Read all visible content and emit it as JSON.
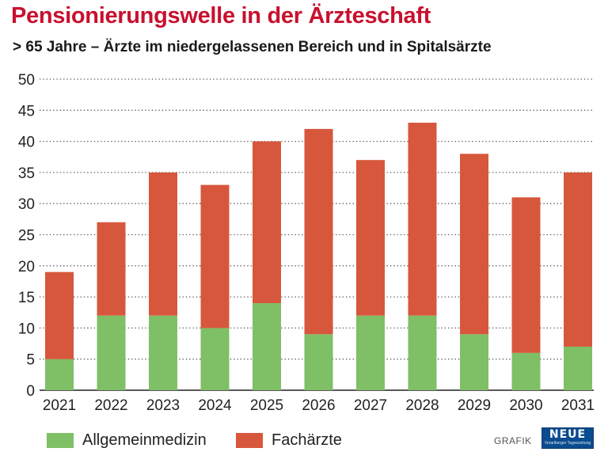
{
  "chart_data": {
    "type": "bar",
    "stacked": true,
    "title": "Pensionierungswelle in der Ärzteschaft",
    "subtitle": "> 65 Jahre – Ärzte im niedergelassenen Bereich und in Spitalsärzte",
    "categories": [
      "2021",
      "2022",
      "2023",
      "2024",
      "2025",
      "2026",
      "2027",
      "2028",
      "2029",
      "2030",
      "2031"
    ],
    "series": [
      {
        "name": "Allgemeinmedizin",
        "color": "#7fbf66",
        "values": [
          5,
          12,
          12,
          10,
          14,
          9,
          12,
          12,
          9,
          6,
          7
        ]
      },
      {
        "name": "Fachärzte",
        "color": "#d7573c",
        "values": [
          14,
          15,
          23,
          23,
          26,
          33,
          25,
          31,
          29,
          25,
          28
        ]
      }
    ],
    "ylim": [
      0,
      50
    ],
    "yticks": [
      0,
      5,
      10,
      15,
      20,
      25,
      30,
      35,
      40,
      45,
      50
    ],
    "grid": true,
    "legend_position": "bottom-left"
  },
  "footer": {
    "credit": "GRAFIK",
    "logo_text": "NEUE",
    "logo_subtext": "Vorarlberger Tageszeitung"
  }
}
